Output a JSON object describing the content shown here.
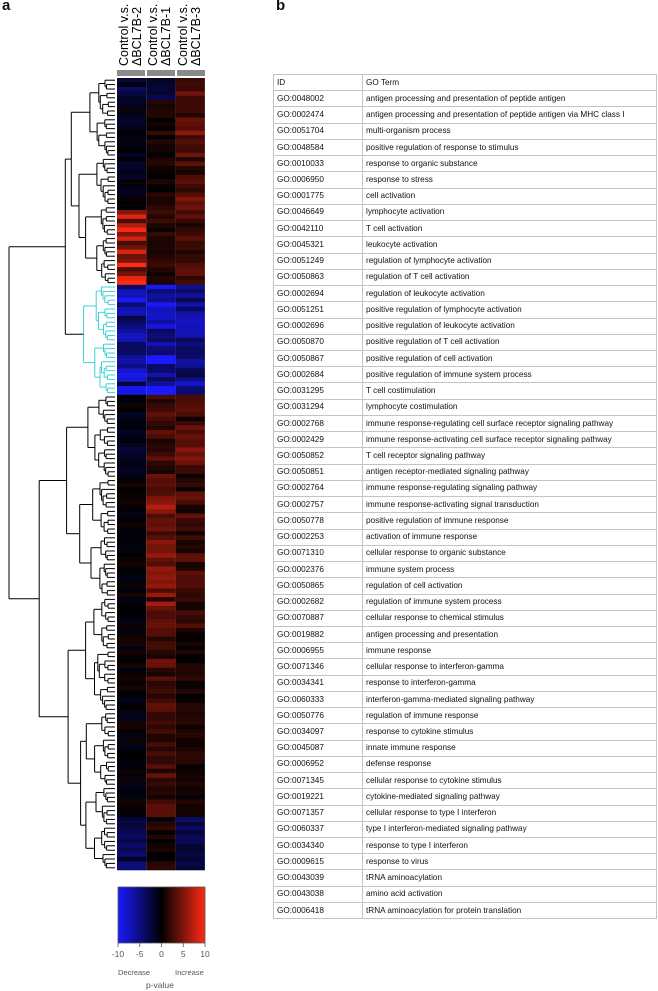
{
  "panels": {
    "a": "a",
    "b": "b"
  },
  "heatmap": {
    "columns": [
      {
        "line1": "Control v.s.",
        "line2": "ΔBCL7B-2"
      },
      {
        "line1": "Control v.s.",
        "line2": "ΔBCL7B-1"
      },
      {
        "line1": "Control v.s.",
        "line2": "ΔBCL7B-3"
      }
    ],
    "dendrogram_color": "#000000",
    "highlight_cluster_color": "#3fd0d8",
    "colors": {
      "negative": "#1a1aff",
      "zero": "#000000",
      "positive": "#ff2a14"
    }
  },
  "color_key": {
    "ticks": [
      "-10",
      "-5",
      "0",
      "5",
      "10"
    ],
    "decrease": "Decrease",
    "increase": "Increase",
    "label": "p-value"
  },
  "table": {
    "headers": {
      "id": "ID",
      "term": "GO Term"
    },
    "rows": [
      {
        "id": "GO:0048002",
        "term": "antigen processing and presentation of peptide antigen"
      },
      {
        "id": "GO:0002474",
        "term": "antigen processing and presentation of peptide antigen via MHC class I"
      },
      {
        "id": "GO:0051704",
        "term": "multi-organism process"
      },
      {
        "id": "GO:0048584",
        "term": "positive regulation of response to stimulus"
      },
      {
        "id": "GO:0010033",
        "term": "response to organic substance"
      },
      {
        "id": "GO:0006950",
        "term": "response to stress"
      },
      {
        "id": "GO:0001775",
        "term": "cell activation"
      },
      {
        "id": "GO:0046649",
        "term": "lymphocyte activation"
      },
      {
        "id": "GO:0042110",
        "term": " T cell activation"
      },
      {
        "id": "GO:0045321",
        "term": "leukocyte activation"
      },
      {
        "id": "GO:0051249",
        "term": "regulation of lymphocyte activation"
      },
      {
        "id": "GO:0050863",
        "term": "regulation of T cell activation"
      },
      {
        "id": "GO:0002694",
        "term": "regulation of leukocyte activation"
      },
      {
        "id": "GO:0051251",
        "term": "positive regulation of lymphocyte activation"
      },
      {
        "id": "GO:0002696",
        "term": "positive regulation of leukocyte activation"
      },
      {
        "id": "GO:0050870",
        "term": "positive regulation of T cell activation"
      },
      {
        "id": "GO:0050867",
        "term": "positive regulation of cell activation"
      },
      {
        "id": "GO:0002684",
        "term": "positive regulation of immune system process"
      },
      {
        "id": "GO:0031295",
        "term": "T cell costimulation"
      },
      {
        "id": "GO:0031294",
        "term": "lymphocyte costimulation"
      },
      {
        "id": "GO:0002768",
        "term": "immune response-regulating cell surface receptor signaling pathway"
      },
      {
        "id": "GO:0002429",
        "term": "immune response-activating cell surface receptor signaling pathway"
      },
      {
        "id": "GO:0050852",
        "term": "T cell receptor signaling pathway"
      },
      {
        "id": "GO:0050851",
        "term": "antigen receptor-mediated signaling pathway"
      },
      {
        "id": "GO:0002764",
        "term": "immune response-regulating signaling pathway"
      },
      {
        "id": "GO:0002757",
        "term": "immune response-activating signal transduction"
      },
      {
        "id": "GO:0050778",
        "term": "positive regulation of immune response"
      },
      {
        "id": "GO:0002253",
        "term": "activation of immune response"
      },
      {
        "id": "GO:0071310",
        "term": "cellular response to organic substance"
      },
      {
        "id": "GO:0002376",
        "term": "immune system process"
      },
      {
        "id": "GO:0050865",
        "term": "regulation of cell activation"
      },
      {
        "id": "GO:0002682",
        "term": "regulation of immune system process"
      },
      {
        "id": "GO:0070887",
        "term": "cellular response to chemical stimulus"
      },
      {
        "id": "GO:0019882",
        "term": "antigen processing and presentation"
      },
      {
        "id": "GO:0006955",
        "term": "immune response"
      },
      {
        "id": "GO:0071346",
        "term": "cellular response to interferon-gamma"
      },
      {
        "id": "GO:0034341",
        "term": "response to interferon-gamma"
      },
      {
        "id": "GO:0060333",
        "term": "interferon-gamma-mediated signaling pathway"
      },
      {
        "id": "GO:0050776",
        "term": "regulation of immune response"
      },
      {
        "id": "GO:0034097",
        "term": "response to cytokine stimulus"
      },
      {
        "id": "GO:0045087",
        "term": "innate immune response"
      },
      {
        "id": "GO:0006952",
        "term": "defense response"
      },
      {
        "id": "GO:0071345",
        "term": "cellular response to cytokine stimulus"
      },
      {
        "id": "GO:0019221",
        "term": "cytokine-mediated signaling pathway"
      },
      {
        "id": "GO:0071357",
        "term": "cellular response to type I interferon"
      },
      {
        "id": "GO:0060337",
        "term": "type I interferon-mediated signaling pathway"
      },
      {
        "id": "GO:0034340",
        "term": "response to type I interferon"
      },
      {
        "id": "GO:0009615",
        "term": "response to virus"
      },
      {
        "id": "GO:0043039",
        "term": "tRNA aminoacylation"
      },
      {
        "id": "GO:0043038",
        "term": "amino acid activation"
      },
      {
        "id": "GO:0006418",
        "term": "tRNA aminoacylation for protein translation"
      }
    ]
  },
  "chart_data": {
    "type": "heatmap",
    "title": "",
    "columns": [
      "Control v.s. ΔBCL7B-2",
      "Control v.s. ΔBCL7B-1",
      "Control v.s. ΔBCL7B-3"
    ],
    "value_label": "p-value",
    "range": [
      -10,
      10
    ],
    "row_count": 180,
    "blocks": [
      {
        "rows": [
          0,
          5
        ],
        "values": [
          -3,
          -2,
          3
        ]
      },
      {
        "rows": [
          5,
          30
        ],
        "values": [
          -1,
          1,
          4
        ]
      },
      {
        "rows": [
          30,
          47
        ],
        "values": [
          8,
          2,
          3
        ]
      },
      {
        "rows": [
          47,
          72
        ],
        "values": [
          -8,
          -9,
          -7
        ]
      },
      {
        "rows": [
          72,
          90
        ],
        "values": [
          -1,
          3,
          4
        ]
      },
      {
        "rows": [
          90,
          125
        ],
        "values": [
          0,
          5,
          3
        ]
      },
      {
        "rows": [
          125,
          168
        ],
        "values": [
          0,
          3,
          1
        ]
      },
      {
        "rows": [
          168,
          180
        ],
        "values": [
          -4,
          1,
          -3
        ]
      }
    ]
  }
}
